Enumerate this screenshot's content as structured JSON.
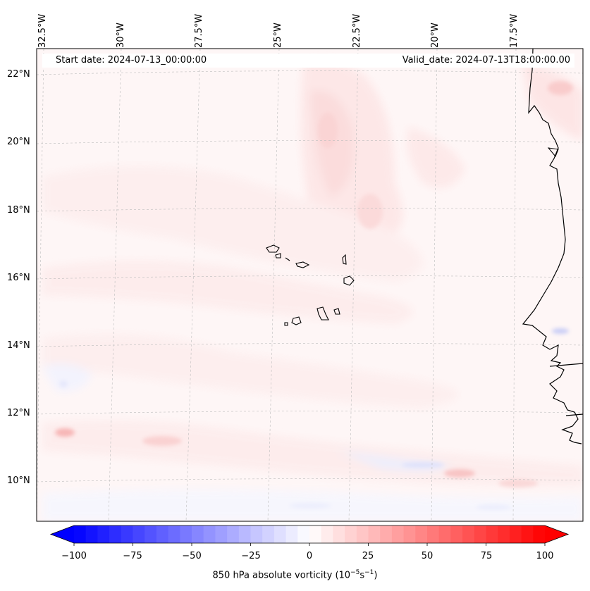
{
  "map": {
    "title_start": "Start date: 2024-07-13_00:00:00",
    "title_valid": "Valid_date: 2024-07-13T18:00:00.00",
    "lon_labels": [
      "32.5°W",
      "30°W",
      "27.5°W",
      "25°W",
      "22.5°W",
      "20°W",
      "17.5°W"
    ],
    "lat_labels": [
      "22°N",
      "20°N",
      "18°N",
      "16°N",
      "14°N",
      "12°N",
      "10°N"
    ],
    "field": "850 hPa absolute vorticity",
    "colors": {
      "negative": "#0000ff",
      "neutral": "#ffffff",
      "positive": "#ff0000",
      "coast": "#000000"
    }
  },
  "colorbar": {
    "label_text": "850 hPa absolute vorticity (10",
    "exp1": "−5",
    "mid": "s",
    "exp2": "−1",
    "close": ")",
    "ticks": [
      "−100",
      "−75",
      "−50",
      "−25",
      "0",
      "25",
      "50",
      "75",
      "100"
    ],
    "min": -100,
    "max": 100
  }
}
